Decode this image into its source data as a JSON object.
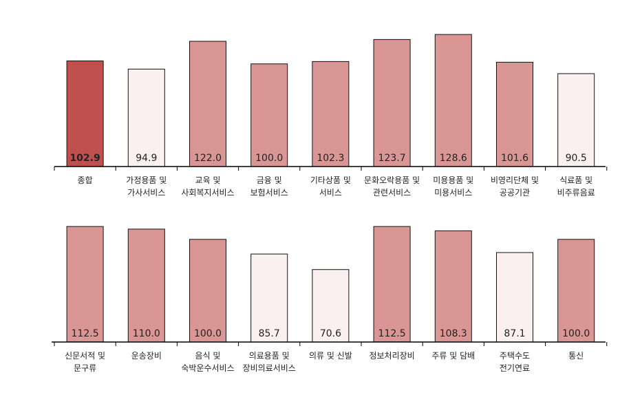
{
  "chart_data": [
    {
      "type": "bar",
      "title": "",
      "xlabel": "",
      "ylabel": "",
      "ylim": [
        0,
        130
      ],
      "grid": false,
      "colors": {
        "highlight": "#c0504d",
        "above": "#d99694",
        "below": "#faf0ef",
        "stroke": "#111111"
      },
      "categories": [
        [
          "종합"
        ],
        [
          "가정용품 및",
          "가사서비스"
        ],
        [
          "교육 및",
          "사회복지서비스"
        ],
        [
          "금융 및",
          "보험서비스"
        ],
        [
          "기타상품 및",
          "서비스"
        ],
        [
          "문화오락용품 및",
          "관련서비스"
        ],
        [
          "미용용품 및",
          "미용서비스"
        ],
        [
          "비영리단체 및",
          "공공기관"
        ],
        [
          "식료품 및",
          "비주류음료"
        ]
      ],
      "values": [
        102.9,
        94.9,
        122.0,
        100.0,
        102.3,
        123.7,
        128.6,
        101.6,
        90.5
      ],
      "labels": [
        "102.9",
        "94.9",
        "122.0",
        "100.0",
        "102.3",
        "123.7",
        "128.6",
        "101.6",
        "90.5"
      ],
      "fill": [
        "highlight",
        "below",
        "above",
        "above",
        "above",
        "above",
        "above",
        "above",
        "below"
      ]
    },
    {
      "type": "bar",
      "title": "",
      "xlabel": "",
      "ylabel": "",
      "ylim": [
        0,
        130
      ],
      "grid": false,
      "colors": {
        "highlight": "#c0504d",
        "above": "#d99694",
        "below": "#faf0ef",
        "stroke": "#111111"
      },
      "categories": [
        [
          "신문서적 및",
          "문구류"
        ],
        [
          "운송장비"
        ],
        [
          "음식 및",
          "숙박운수서비스"
        ],
        [
          "의료용품 및",
          "장비의료서비스"
        ],
        [
          "의류 및 신발"
        ],
        [
          "정보처리장비"
        ],
        [
          "주류 및 담배"
        ],
        [
          "주택수도",
          "전기연료"
        ],
        [
          "통신"
        ]
      ],
      "values": [
        112.5,
        110.0,
        100.0,
        85.7,
        70.6,
        112.5,
        108.3,
        87.1,
        100.0
      ],
      "labels": [
        "112.5",
        "110.0",
        "100.0",
        "85.7",
        "70.6",
        "112.5",
        "108.3",
        "87.1",
        "100.0"
      ],
      "fill": [
        "above",
        "above",
        "above",
        "below",
        "below",
        "above",
        "above",
        "below",
        "above"
      ]
    }
  ]
}
